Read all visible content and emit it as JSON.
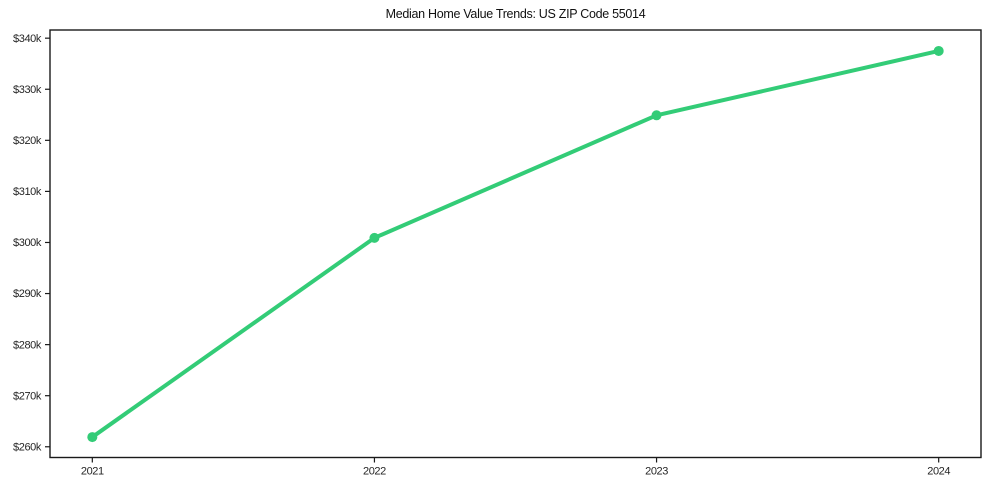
{
  "chart_data": {
    "type": "line",
    "title": "Median Home Value Trends: US ZIP Code 55014",
    "xlabel": "",
    "ylabel": "",
    "x": [
      2021,
      2022,
      2023,
      2024
    ],
    "x_tick_labels": [
      "2021",
      "2022",
      "2023",
      "2024"
    ],
    "series": [
      {
        "values": [
          261900,
          300900,
          324900,
          337500
        ],
        "color": "#33cc77",
        "marker": "circle"
      }
    ],
    "y_ticks": [
      {
        "value": 260000,
        "label": "$260k"
      },
      {
        "value": 270000,
        "label": "$270k"
      },
      {
        "value": 280000,
        "label": "$280k"
      },
      {
        "value": 290000,
        "label": "$290k"
      },
      {
        "value": 300000,
        "label": "$300k"
      },
      {
        "value": 310000,
        "label": "$310k"
      },
      {
        "value": 320000,
        "label": "$320k"
      },
      {
        "value": 330000,
        "label": "$330k"
      },
      {
        "value": 340000,
        "label": "$340k"
      }
    ],
    "xlim": [
      2020.85,
      2024.15
    ],
    "ylim": [
      257900,
      341600
    ],
    "grid": false,
    "legend_position": "none",
    "axis_color": "#1a1a1a",
    "tick_label_color": "#262626",
    "background_color": "#ffffff"
  }
}
